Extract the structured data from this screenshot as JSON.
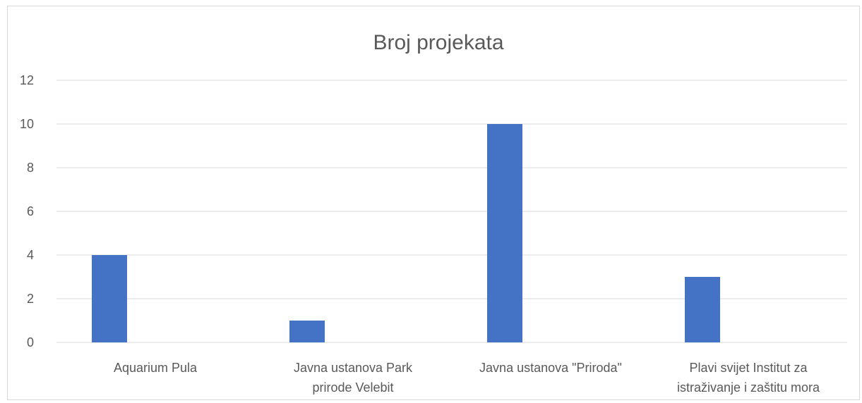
{
  "chart_data": {
    "type": "bar",
    "title": "Broj projekata",
    "xlabel": "",
    "ylabel": "",
    "categories": [
      [
        "Aquarium Pula"
      ],
      [
        "Javna ustanova Park",
        "prirode Velebit"
      ],
      [
        "Javna ustanova \"Priroda\""
      ],
      [
        "Plavi svijet Institut za",
        "istraživanje i zaštitu mora"
      ]
    ],
    "values": [
      4,
      1,
      10,
      3
    ],
    "ylim": [
      0,
      12
    ],
    "yticks": [
      "0",
      "2",
      "4",
      "6",
      "8",
      "10",
      "12"
    ],
    "grid": true,
    "legend": "none",
    "colors": {
      "bar": "#4472c4",
      "grid": "#d9d9d9",
      "text": "#595959"
    }
  }
}
